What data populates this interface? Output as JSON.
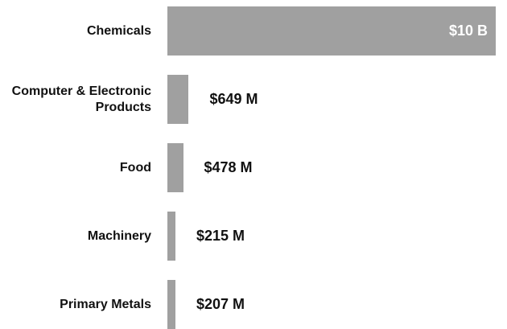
{
  "chart_data": {
    "type": "bar",
    "orientation": "horizontal",
    "categories": [
      "Chemicals",
      "Computer & Electronic Products",
      "Food",
      "Machinery",
      "Primary Metals"
    ],
    "values": [
      10000000000,
      649000000,
      478000000,
      215000000,
      207000000
    ],
    "value_labels": [
      "$10 B",
      "$649 M",
      "$478 M",
      "$215 M",
      "$207 M"
    ],
    "color": "#a0a0a0",
    "xlim": [
      0,
      10000000000
    ]
  }
}
